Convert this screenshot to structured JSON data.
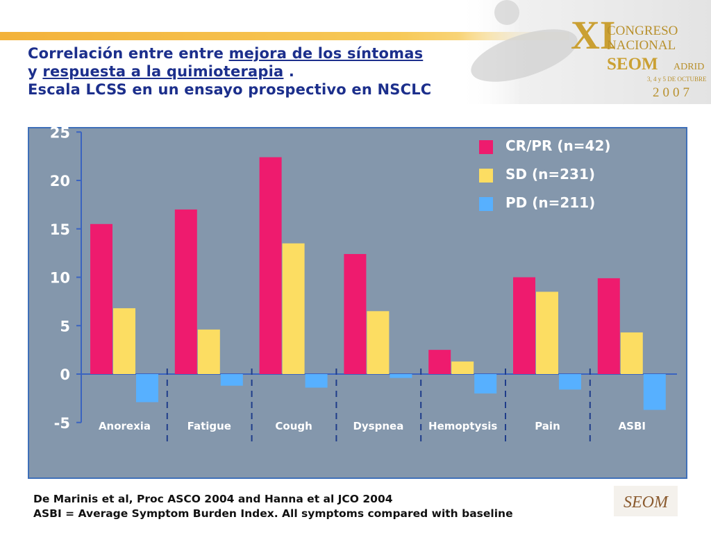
{
  "header": {
    "title_line1_plain": "Correlación entre entre ",
    "title_line1_underlined": "mejora de los síntomas",
    "title_line2_prefix": "y ",
    "title_line2_underlined": "respuesta a la quimioterapia",
    "title_line2_suffix": " .",
    "title_line3": "Escala LCSS en un ensayo prospectivo en NSCLC"
  },
  "banner": {
    "numeral": "XI",
    "congreso": "CONGRESO",
    "nacional": "NACIONAL",
    "seom": "SEOM",
    "madrid": "ADRID",
    "dates": "3, 4 y 5 DE OCTUBRE",
    "year": "2007"
  },
  "chart_data": {
    "type": "bar",
    "categories": [
      "Anorexia",
      "Fatigue",
      "Cough",
      "Dyspnea",
      "Hemoptysis",
      "Pain",
      "ASBI"
    ],
    "series": [
      {
        "name": "CR/PR (n=42)",
        "color": "#ee1b6e",
        "values": [
          15.5,
          17.0,
          22.4,
          12.4,
          2.5,
          10.0,
          9.9
        ]
      },
      {
        "name": "SD (n=231)",
        "color": "#fcdd62",
        "values": [
          6.8,
          4.6,
          13.5,
          6.5,
          1.3,
          8.5,
          4.3
        ]
      },
      {
        "name": "PD (n=211)",
        "color": "#57b0ff",
        "values": [
          -2.9,
          -1.2,
          -1.4,
          -0.4,
          -2.0,
          -1.6,
          -3.7
        ]
      }
    ],
    "ylim": [
      -5,
      25
    ],
    "yticks": [
      "-5",
      "0",
      "5",
      "10",
      "15",
      "20",
      "25"
    ],
    "title": "",
    "xlabel": "",
    "ylabel": "",
    "grid": false,
    "legend_position": "top-right"
  },
  "footnote": {
    "line1": "De Marinis et al, Proc ASCO 2004 and Hanna et al JCO 2004",
    "line2": "ASBI = Average Symptom Burden Index.  All symptoms compared with baseline"
  },
  "logo": {
    "text": "SEOM"
  },
  "colors": {
    "title": "#1c2f8c",
    "panel": "#8497ac",
    "axis": "#3a63c0",
    "accent": "#f3b23a"
  }
}
